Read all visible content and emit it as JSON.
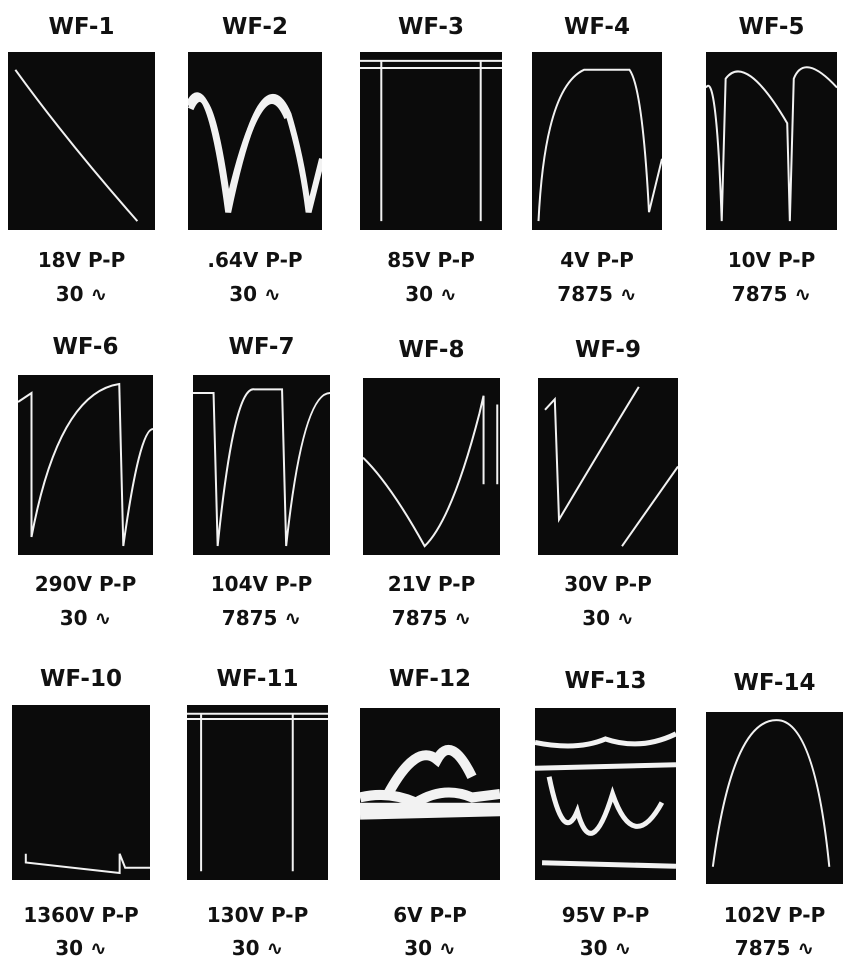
{
  "waveforms": [
    {
      "label": "WF-1",
      "voltage": "18V P-P",
      "frequency": "30 ∿"
    },
    {
      "label": "WF-2",
      "voltage": ".64V P-P",
      "frequency": "30 ∿"
    },
    {
      "label": "WF-3",
      "voltage": "85V P-P",
      "frequency": "30 ∿"
    },
    {
      "label": "WF-4",
      "voltage": "4V P-P",
      "frequency": "7875 ∿"
    },
    {
      "label": "WF-5",
      "voltage": "10V P-P",
      "frequency": "7875 ∿"
    },
    {
      "label": "WF-6",
      "voltage": "290V P-P",
      "frequency": "30 ∿"
    },
    {
      "label": "WF-7",
      "voltage": "104V P-P",
      "frequency": "7875 ∿"
    },
    {
      "label": "WF-8",
      "voltage": "21V P-P",
      "frequency": "7875 ∿"
    },
    {
      "label": "WF-9",
      "voltage": "30V P-P",
      "frequency": "30 ∿"
    },
    {
      "label": "WF-10",
      "voltage": "1360V P-P",
      "frequency": "30 ∿"
    },
    {
      "label": "WF-11",
      "voltage": "130V P-P",
      "frequency": "30 ∿"
    },
    {
      "label": "WF-12",
      "voltage": "6V P-P",
      "frequency": "30 ∿"
    },
    {
      "label": "WF-13",
      "voltage": "95V P-P",
      "frequency": "30 ∿"
    },
    {
      "label": "WF-14",
      "voltage": "102V P-P",
      "frequency": "7875 ∿"
    }
  ]
}
